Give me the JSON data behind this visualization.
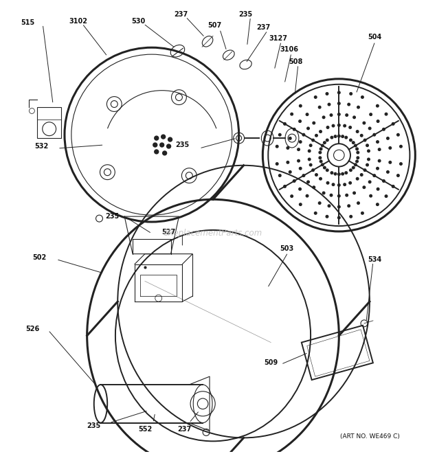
{
  "bg_color": "#ffffff",
  "line_color": "#222222",
  "text_color": "#111111",
  "watermark_color": "#bbbbbb",
  "watermark_text": "eReplacementParts.com",
  "art_no_text": "(ART NO. WE469 C)",
  "figsize": [
    6.2,
    6.61
  ],
  "dpi": 100
}
